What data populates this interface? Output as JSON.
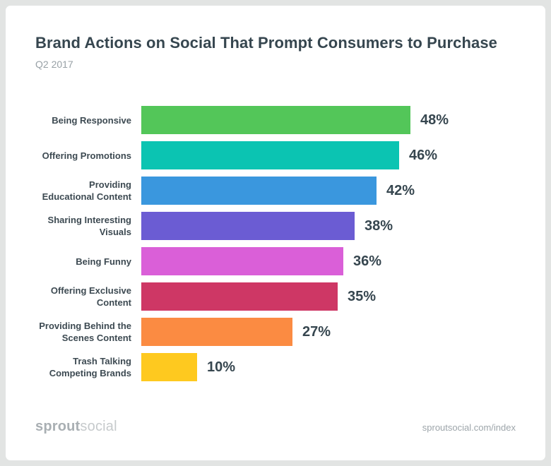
{
  "header": {
    "title": "Brand Actions on Social That Prompt Consumers to Purchase",
    "subtitle": "Q2 2017"
  },
  "chart_data": {
    "type": "bar",
    "orientation": "horizontal",
    "title": "Brand Actions on Social That Prompt Consumers to Purchase",
    "subtitle": "Q2 2017",
    "categories": [
      "Being Responsive",
      "Offering Promotions",
      "Providing Educational Content",
      "Sharing Interesting Visuals",
      "Being Funny",
      "Offering Exclusive Content",
      "Providing Behind the Scenes Content",
      "Trash Talking Competing Brands"
    ],
    "values": [
      48,
      46,
      42,
      38,
      36,
      35,
      27,
      10
    ],
    "value_labels": [
      "48%",
      "46%",
      "42%",
      "38%",
      "36%",
      "35%",
      "27%",
      "10%"
    ],
    "bar_colors": [
      "#53C659",
      "#0BC4B2",
      "#3A97DE",
      "#6B5CD3",
      "#DA5FD8",
      "#CE3765",
      "#FB8B42",
      "#FEC91F"
    ],
    "value_suffix": "%",
    "xlim": [
      0,
      50
    ],
    "grid": false,
    "legend": false
  },
  "footer": {
    "logo_bold": "sprout",
    "logo_light": "social",
    "link": "sproutsocial.com/index"
  },
  "colors": {
    "frame_background": "#E2E4E3",
    "card_background": "#FFFFFF",
    "title_text": "#36464F",
    "subtitle_text": "#98A1A6",
    "category_text": "#3D4A52",
    "value_text": "#36464F",
    "footer_logo_bold": "#A9AFB3",
    "footer_logo_light": "#C6CACC",
    "footer_link": "#9DA5AA"
  }
}
